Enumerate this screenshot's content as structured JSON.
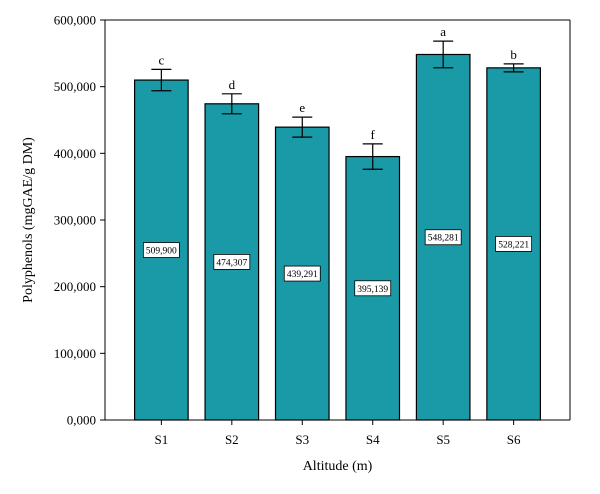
{
  "chart_data": {
    "type": "bar",
    "title": "",
    "xlabel": "Altitude (m)",
    "ylabel": "Polyphenols (mgGAE/g DM)",
    "ylim": [
      0,
      600
    ],
    "yticks": [
      0,
      100,
      200,
      300,
      400,
      500,
      600
    ],
    "ytick_labels": [
      "0,000",
      "100,000",
      "200,000",
      "300,000",
      "400,000",
      "500,000",
      "600,000"
    ],
    "categories": [
      "S1",
      "S2",
      "S3",
      "S4",
      "S5",
      "S6"
    ],
    "values": [
      509.9,
      474.307,
      439.291,
      395.139,
      548.281,
      528.221
    ],
    "value_labels": [
      "509,900",
      "474,307",
      "439,291",
      "395,139",
      "548,281",
      "528,221"
    ],
    "errors": [
      16,
      15,
      15,
      19,
      20,
      6
    ],
    "significance": [
      "c",
      "d",
      "e",
      "f",
      "a",
      "b"
    ],
    "bar_color": "#1a9aa6",
    "grid": false,
    "legend": "none"
  }
}
